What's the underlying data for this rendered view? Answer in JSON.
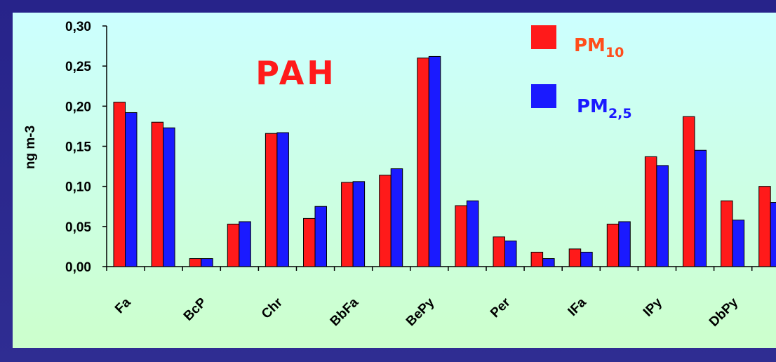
{
  "chart_data": {
    "type": "bar",
    "title": "PAH",
    "ylabel": "ng m-3",
    "xlabel": "",
    "ylim": [
      0,
      0.3
    ],
    "yticks": [
      "0,00",
      "0,05",
      "0,10",
      "0,15",
      "0,20",
      "0,25",
      "0,30"
    ],
    "ytick_values": [
      0,
      0.05,
      0.1,
      0.15,
      0.2,
      0.25,
      0.3
    ],
    "x_labels": [
      "Fa",
      "BcP",
      "Chr",
      "BbFa",
      "BePy",
      "Per",
      "IFa",
      "IPy",
      "DbPy"
    ],
    "legend_position": "top-right",
    "grid": false,
    "series": [
      {
        "name": "PM10",
        "legend_base": "PM",
        "legend_sub": "10",
        "color": "#ff1a1a",
        "values": [
          0.205,
          0.18,
          0.01,
          0.053,
          0.166,
          0.06,
          0.105,
          0.114,
          0.26,
          0.076,
          0.037,
          0.018,
          0.022,
          0.053,
          0.137,
          0.187,
          0.082,
          0.1
        ]
      },
      {
        "name": "PM2,5",
        "legend_base": "PM",
        "legend_sub": "2,5",
        "color": "#1a1aff",
        "values": [
          0.192,
          0.173,
          0.01,
          0.056,
          0.167,
          0.075,
          0.106,
          0.122,
          0.262,
          0.082,
          0.032,
          0.01,
          0.018,
          0.056,
          0.126,
          0.145,
          0.058,
          0.08
        ]
      }
    ],
    "colors": {
      "plot_top": "#ccffff",
      "plot_bottom": "#ccffcc",
      "frame": "#2a2890",
      "title_color": "#ff1a1a",
      "legend_pm10_text": "#ff4d1a",
      "legend_pm25_text": "#1a1aff"
    }
  }
}
